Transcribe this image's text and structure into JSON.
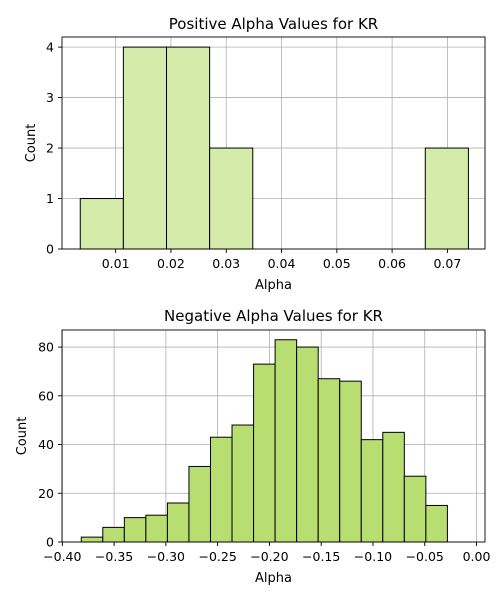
{
  "chart_data": [
    {
      "type": "bar",
      "title": "Positive Alpha Values for KR",
      "xlabel": "Alpha",
      "ylabel": "Count",
      "bar_color": "#d4ebaa",
      "xlim": [
        0.0003,
        0.0768
      ],
      "ylim": [
        0,
        4.2
      ],
      "xticks": [
        0.01,
        0.02,
        0.03,
        0.04,
        0.05,
        0.06,
        0.07
      ],
      "xtick_labels": [
        "0.01",
        "0.02",
        "0.03",
        "0.04",
        "0.05",
        "0.06",
        "0.07"
      ],
      "yticks": [
        0,
        1,
        2,
        3,
        4
      ],
      "ytick_labels": [
        "0",
        "1",
        "2",
        "3",
        "4"
      ],
      "grid": true,
      "bins": [
        {
          "x0": 0.0036,
          "x1": 0.0114,
          "count": 1
        },
        {
          "x0": 0.0114,
          "x1": 0.0192,
          "count": 4
        },
        {
          "x0": 0.0192,
          "x1": 0.027,
          "count": 4
        },
        {
          "x0": 0.027,
          "x1": 0.0348,
          "count": 2
        },
        {
          "x0": 0.0348,
          "x1": 0.0426,
          "count": 0
        },
        {
          "x0": 0.0426,
          "x1": 0.0504,
          "count": 0
        },
        {
          "x0": 0.0504,
          "x1": 0.0582,
          "count": 0
        },
        {
          "x0": 0.0582,
          "x1": 0.066,
          "count": 0
        },
        {
          "x0": 0.066,
          "x1": 0.0738,
          "count": 2
        }
      ]
    },
    {
      "type": "bar",
      "title": "Negative Alpha Values for KR",
      "xlabel": "Alpha",
      "ylabel": "Count",
      "bar_color": "#b8de72",
      "xlim": [
        -0.4003,
        0.0082
      ],
      "ylim": [
        0,
        87
      ],
      "xticks": [
        -0.4,
        -0.35,
        -0.3,
        -0.25,
        -0.2,
        -0.15,
        -0.1,
        -0.05,
        0.0
      ],
      "xtick_labels": [
        "−0.40",
        "−0.35",
        "−0.30",
        "−0.25",
        "−0.20",
        "−0.15",
        "−0.10",
        "−0.05",
        "0.00"
      ],
      "yticks": [
        0,
        20,
        40,
        60,
        80
      ],
      "ytick_labels": [
        "0",
        "20",
        "40",
        "60",
        "80"
      ],
      "grid": true,
      "bins": [
        {
          "x0": -0.3817,
          "x1": -0.3609,
          "count": 2
        },
        {
          "x0": -0.3609,
          "x1": -0.3401,
          "count": 6
        },
        {
          "x0": -0.3401,
          "x1": -0.3193,
          "count": 10
        },
        {
          "x0": -0.3193,
          "x1": -0.2985,
          "count": 11
        },
        {
          "x0": -0.2985,
          "x1": -0.2777,
          "count": 16
        },
        {
          "x0": -0.2777,
          "x1": -0.2569,
          "count": 31
        },
        {
          "x0": -0.2569,
          "x1": -0.2361,
          "count": 43
        },
        {
          "x0": -0.2361,
          "x1": -0.2153,
          "count": 48
        },
        {
          "x0": -0.2153,
          "x1": -0.1945,
          "count": 73
        },
        {
          "x0": -0.1945,
          "x1": -0.1737,
          "count": 83
        },
        {
          "x0": -0.1737,
          "x1": -0.1529,
          "count": 80
        },
        {
          "x0": -0.1529,
          "x1": -0.1321,
          "count": 67
        },
        {
          "x0": -0.1321,
          "x1": -0.1113,
          "count": 66
        },
        {
          "x0": -0.1113,
          "x1": -0.0905,
          "count": 42
        },
        {
          "x0": -0.0905,
          "x1": -0.0697,
          "count": 45
        },
        {
          "x0": -0.0697,
          "x1": -0.0489,
          "count": 27
        },
        {
          "x0": -0.0489,
          "x1": -0.0281,
          "count": 15
        }
      ]
    }
  ]
}
